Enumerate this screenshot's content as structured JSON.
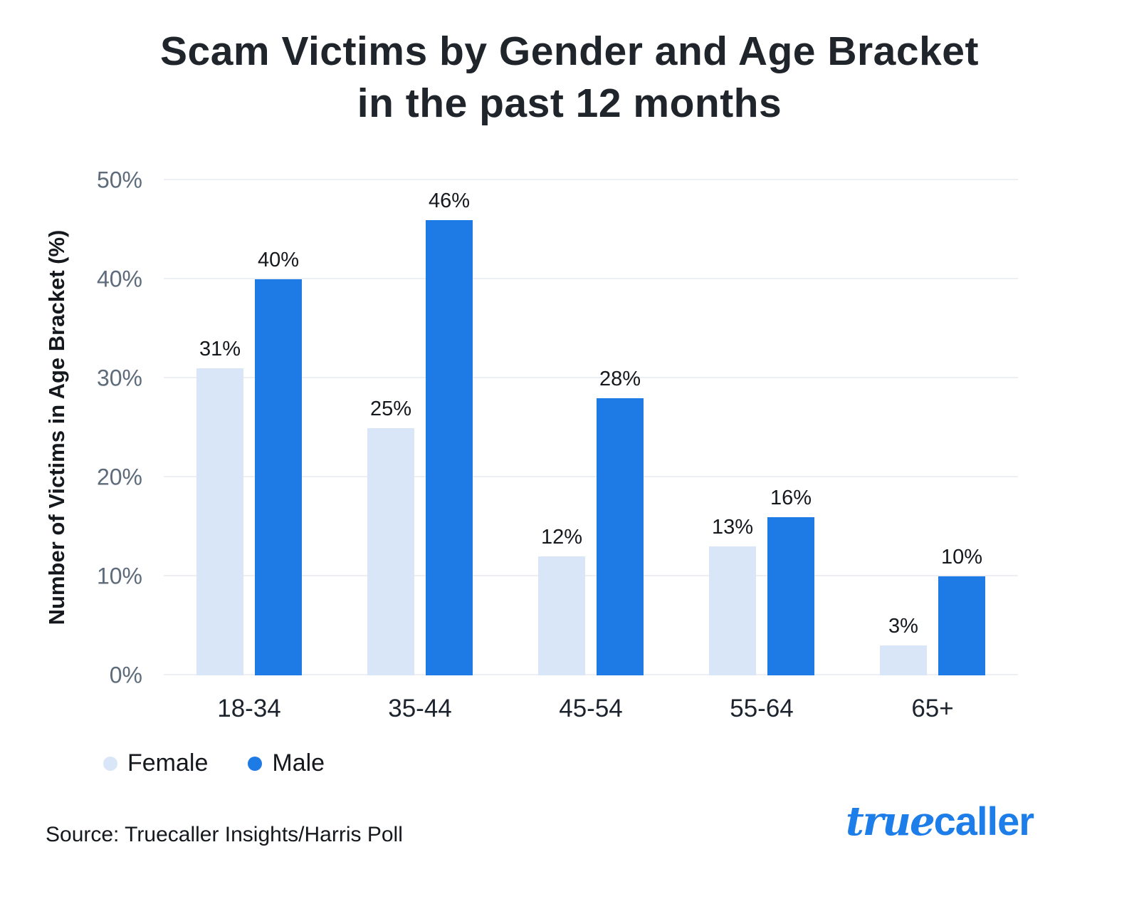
{
  "chart_data": {
    "type": "bar",
    "title_line1": "Scam Victims by Gender and Age Bracket",
    "title_line2": "in the past 12 months",
    "ylabel": "Number of Victims in Age Bracket (%)",
    "ylim": [
      0,
      50
    ],
    "yticks": [
      "0%",
      "10%",
      "20%",
      "30%",
      "40%",
      "50%"
    ],
    "grid": true,
    "legend_position": "bottom-left",
    "categories": [
      "18-34",
      "35-44",
      "45-54",
      "55-64",
      "65+"
    ],
    "series": [
      {
        "name": "Female",
        "color": "#d8e6f8",
        "values": [
          31,
          25,
          12,
          13,
          3
        ]
      },
      {
        "name": "Male",
        "color": "#1e7be5",
        "values": [
          40,
          46,
          28,
          16,
          10
        ]
      }
    ]
  },
  "footer": {
    "source": "Source: Truecaller Insights/Harris Poll",
    "logo_true": "true",
    "logo_caller": "caller"
  },
  "colors": {
    "female": "#d8e6f8",
    "male": "#1e7be5",
    "brand": "#1d7eea"
  }
}
